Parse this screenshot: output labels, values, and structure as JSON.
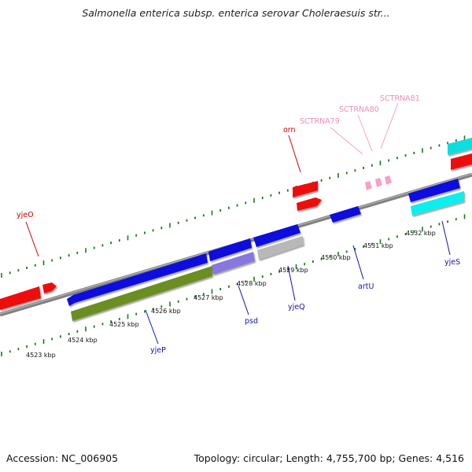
{
  "title": "Salmonella enterica subsp. enterica serovar Choleraesuis str...",
  "footer": {
    "accession": "Accession: NC_006905",
    "summary": "Topology: circular; Length: 4,755,700 bp; Genes: 4,516"
  },
  "colors": {
    "backbone": "#808080",
    "tick": "#1a7a1a",
    "red_gene": "#ee1111",
    "blue_gene": "#1111dd",
    "cyan_gene": "#11dddd",
    "olive_gene": "#6a8e23",
    "lavender_gene": "#8877dd",
    "grey_gene": "#b8b8b8",
    "rna_pink": "#f4a0c8",
    "red_label": "#cc0000",
    "blue_label": "#1111bb"
  },
  "scale": {
    "labels": [
      "4523 kbp",
      "4524 kbp",
      "4525 kbp",
      "4526 kbp",
      "4527 kbp",
      "4528 kbp",
      "4529 kbp",
      "4530 kbp",
      "4531 kbp",
      "4532 kbp"
    ]
  },
  "genes": {
    "yjeO": "yjeO",
    "orn": "orn",
    "sctrna79": "SCTRNA79",
    "sctrna80": "SCTRNA80",
    "sctrna81": "SCTRNA81",
    "yjeP": "yjeP",
    "psd": "psd",
    "yjeQ": "yjeQ",
    "artU": "artU",
    "yjeS": "yjeS"
  }
}
